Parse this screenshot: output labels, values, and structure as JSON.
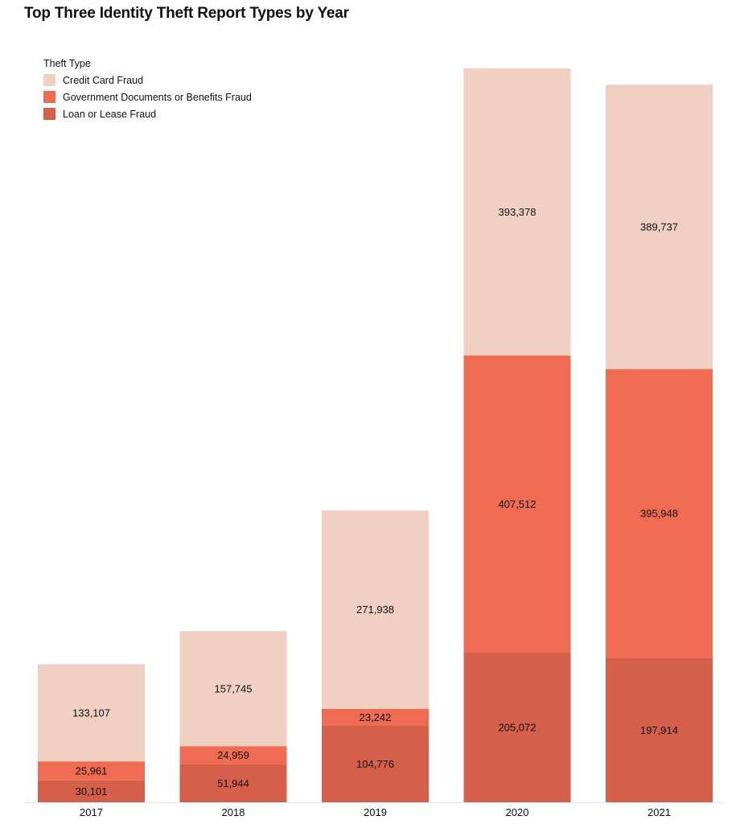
{
  "chart_data": {
    "type": "bar",
    "stacked": true,
    "title": "Top Three Identity Theft Report Types by Year",
    "legend_title": "Theft Type",
    "legend_position": "top-left",
    "categories": [
      "2017",
      "2018",
      "2019",
      "2020",
      "2021"
    ],
    "series": [
      {
        "name": "Loan or Lease Fraud",
        "color": "#d45f4a",
        "values": [
          30101,
          51944,
          104776,
          205072,
          197914
        ],
        "labels": [
          "30,101",
          "51,944",
          "104,776",
          "205,072",
          "197,914"
        ]
      },
      {
        "name": "Government Documents or Benefits Fraud",
        "color": "#ef6c53",
        "values": [
          25961,
          24959,
          23242,
          407512,
          395948
        ],
        "labels": [
          "25,961",
          "24,959",
          "23,242",
          "407,512",
          "395,948"
        ]
      },
      {
        "name": "Credit Card Fraud",
        "color": "#f0d0c2",
        "values": [
          133107,
          157745,
          271938,
          393378,
          389737
        ],
        "labels": [
          "133,107",
          "157,745",
          "271,938",
          "393,378",
          "389,737"
        ]
      }
    ],
    "legend_order": [
      2,
      1,
      0
    ],
    "grid": false
  }
}
